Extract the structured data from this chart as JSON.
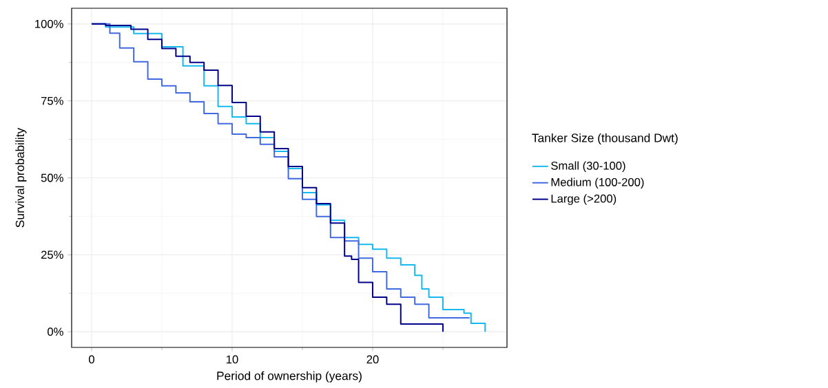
{
  "chart_data": {
    "type": "step",
    "xlabel": "Period of ownership (years)",
    "ylabel": "Survival probability",
    "legend_title": "Tanker Size (thousand Dwt)",
    "legend": "right",
    "grid": true,
    "xlim": [
      -1.42,
      29.56
    ],
    "ylim": [
      -5.1,
      105.1
    ],
    "xticks": [
      0,
      10,
      20
    ],
    "yticks": [
      {
        "value": 0,
        "label": "0%"
      },
      {
        "value": 25,
        "label": "25%"
      },
      {
        "value": 50,
        "label": "50%"
      },
      {
        "value": 75,
        "label": "75%"
      },
      {
        "value": 100,
        "label": "100%"
      }
    ],
    "series": [
      {
        "name": "Small (30-100)",
        "color": "#17b8f0",
        "x": [
          0,
          1,
          3,
          5,
          6.5,
          8,
          9,
          10,
          11,
          12,
          13,
          14,
          15,
          16,
          17,
          18,
          19,
          20,
          21,
          22,
          23,
          23.5,
          24,
          25,
          26.5,
          27,
          28
        ],
        "values": [
          100,
          99,
          96.9,
          92.6,
          86.4,
          79.9,
          73.2,
          69.8,
          67.6,
          63.1,
          58.6,
          53,
          45.2,
          41.2,
          36.2,
          30.6,
          28.4,
          26.8,
          23.9,
          21.7,
          18.3,
          13.9,
          11.2,
          7.2,
          6,
          2.7,
          0
        ]
      },
      {
        "name": "Medium (100-200)",
        "color": "#4169e1",
        "x": [
          0,
          1.3,
          2,
          3,
          4,
          5,
          6,
          7,
          8,
          9,
          10,
          11,
          12,
          13,
          14,
          15,
          16,
          17,
          18,
          19,
          20,
          21,
          22,
          23,
          24,
          26.9
        ],
        "values": [
          100,
          97,
          92.2,
          87.7,
          82.1,
          79.9,
          77.6,
          74.7,
          70.9,
          67.6,
          64.2,
          63.1,
          60.9,
          56.8,
          49.7,
          43,
          37.4,
          30.6,
          29.5,
          23.9,
          19.5,
          13.9,
          11.2,
          8.9,
          4.5,
          4.5
        ]
      },
      {
        "name": "Large (>200)",
        "color": "#00008b",
        "x": [
          0,
          1,
          2.8,
          4,
          5,
          6,
          7,
          8,
          9,
          10,
          11,
          12,
          13,
          14,
          15,
          16,
          17,
          18,
          18.5,
          19,
          20,
          21,
          22,
          25,
          25
        ],
        "values": [
          100,
          99.5,
          98.3,
          95,
          92,
          89.5,
          87.5,
          85,
          80,
          74.5,
          70,
          64.9,
          59.5,
          53.7,
          46.8,
          41.6,
          35.3,
          24.6,
          23.5,
          16,
          11.2,
          8.9,
          2.5,
          2.5,
          0
        ]
      }
    ]
  }
}
